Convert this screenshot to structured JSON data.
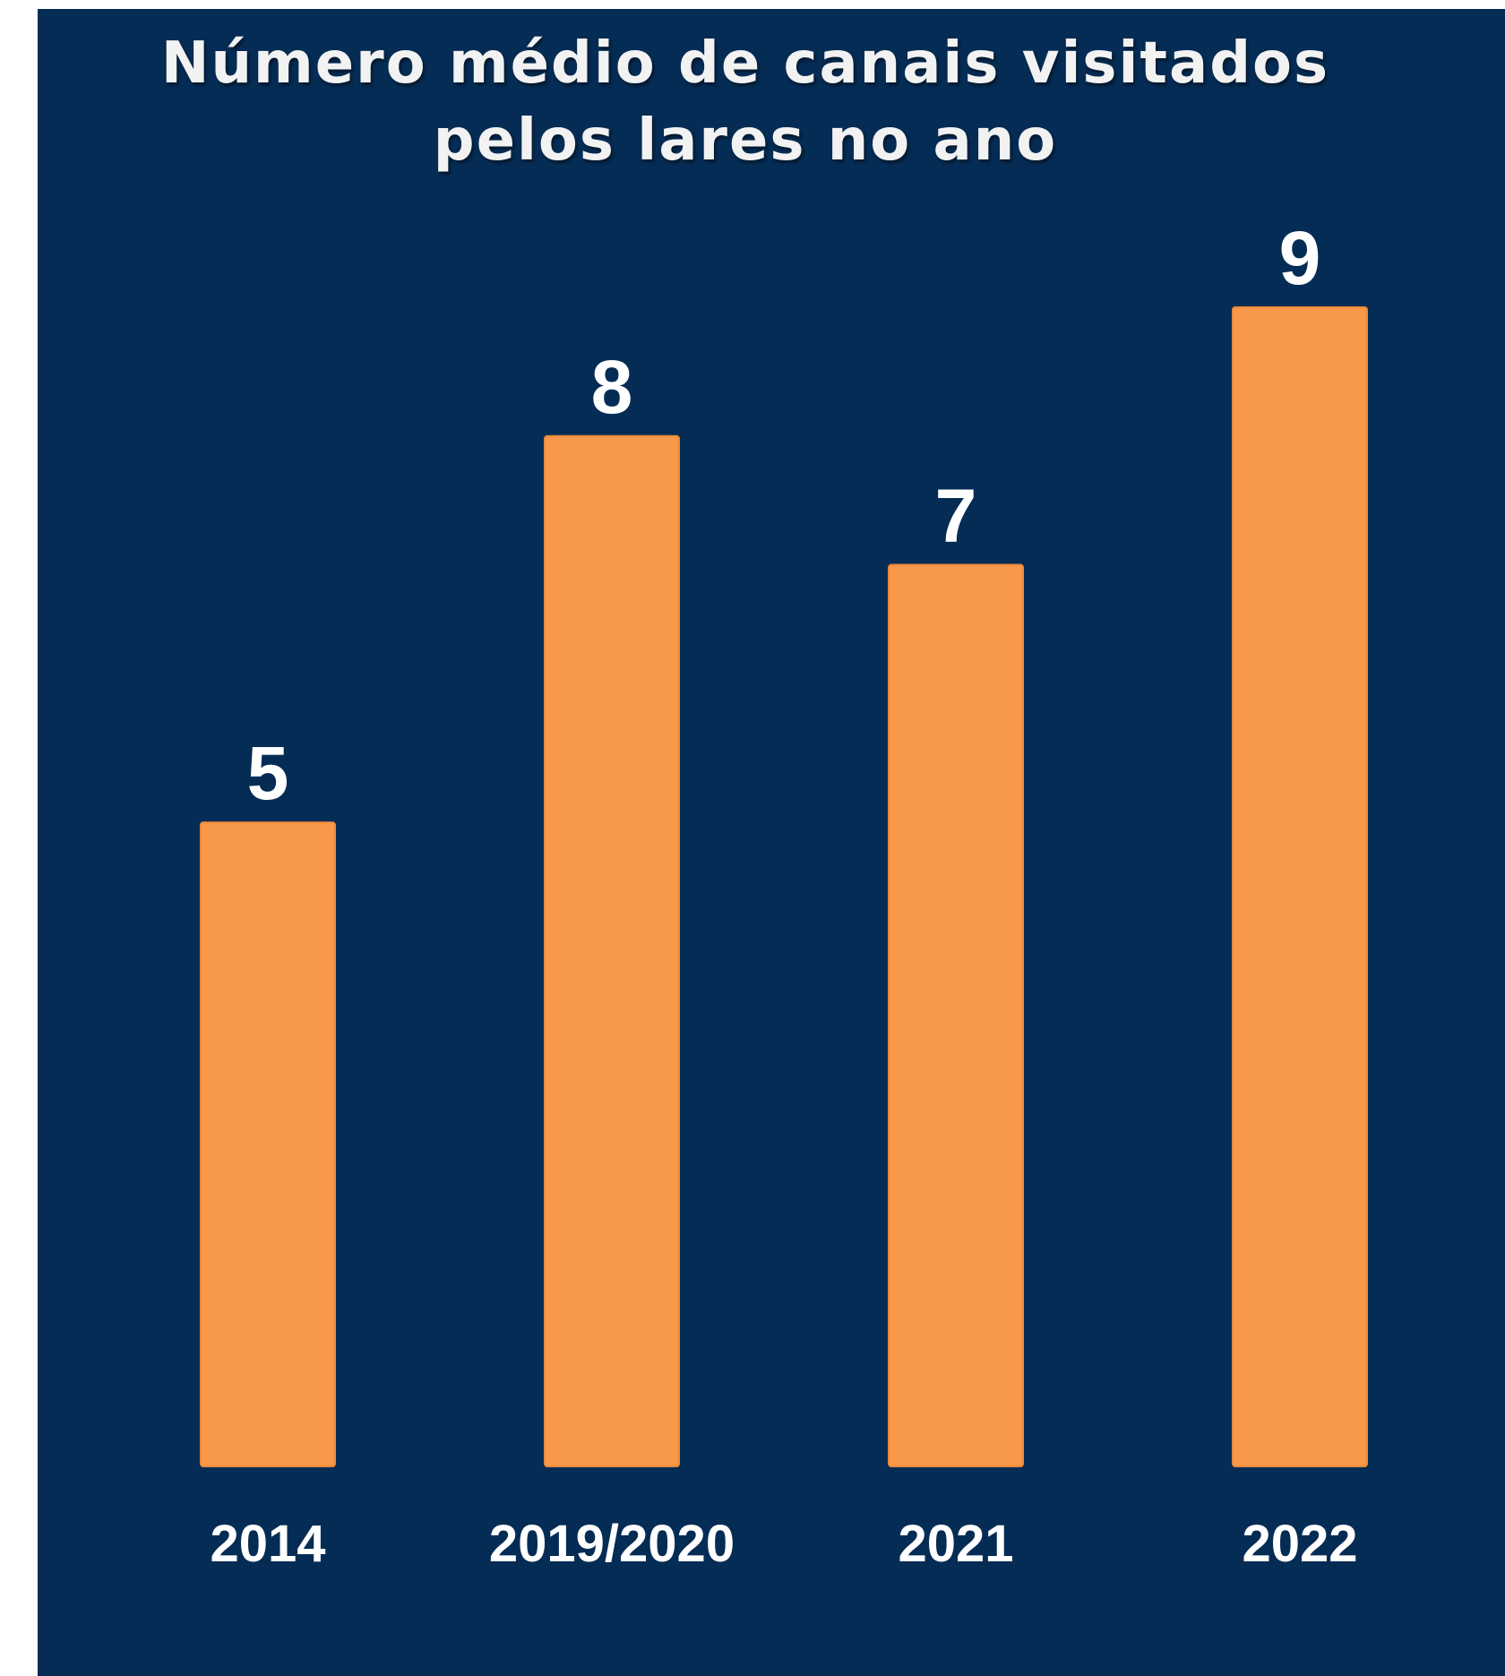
{
  "chart_data": {
    "type": "bar",
    "title_lines": [
      "Número médio de canais visitados",
      "pelos lares no ano"
    ],
    "categories": [
      "2014",
      "2019/2020",
      "2021",
      "2022"
    ],
    "values": [
      5,
      8,
      7,
      9
    ],
    "value_labels": [
      "5",
      "8",
      "7",
      "9"
    ],
    "xlabel": "",
    "ylabel": "",
    "ylim": [
      0,
      9
    ],
    "grid": false,
    "legend": "none",
    "colors": {
      "background": "#052c54",
      "bar": "#f7984a",
      "text": "#ffffff"
    }
  }
}
